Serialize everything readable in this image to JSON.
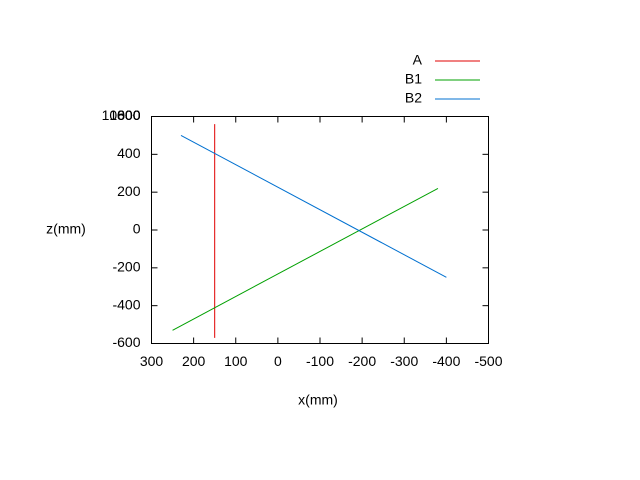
{
  "chart_data": {
    "type": "line",
    "xlabel": "x(mm)",
    "ylabel": "z(mm)",
    "xlim": [
      300,
      -500
    ],
    "ylim": [
      -600,
      600
    ],
    "xticks": [
      300,
      200,
      100,
      0,
      -100,
      -200,
      -300,
      -400,
      -500
    ],
    "yticks": [
      -600,
      -400,
      -200,
      0,
      200,
      400,
      600
    ],
    "top_overlap_labels": [
      "800",
      "1000",
      "10000"
    ],
    "legend": "top-right",
    "series": [
      {
        "name": "A",
        "color": "#e00000",
        "x": [
          150,
          150
        ],
        "values": [
          560,
          -570
        ]
      },
      {
        "name": "B1",
        "color": "#00a000",
        "x": [
          250,
          -380
        ],
        "values": [
          -530,
          220
        ]
      },
      {
        "name": "B2",
        "color": "#0070d0",
        "x": [
          230,
          -400
        ],
        "values": [
          500,
          -250
        ]
      }
    ]
  }
}
